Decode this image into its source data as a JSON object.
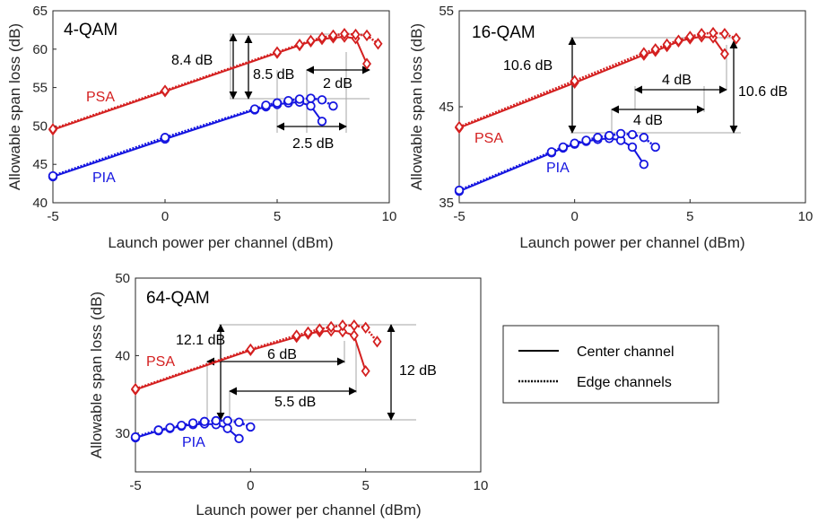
{
  "colors": {
    "psa": "#d42020",
    "pia": "#1515e0",
    "axis": "#262626",
    "guide": "#a6a6a6",
    "arrow": "#000000"
  },
  "legend": {
    "center_label": "Center channel",
    "edge_label": "Edge channels"
  },
  "chart_data": [
    {
      "type": "line",
      "panel": "4-QAM",
      "title": "4-QAM",
      "xlabel": "Launch power per channel (dBm)",
      "ylabel": "Allowable span loss (dB)",
      "xlim": [
        -5,
        10
      ],
      "ylim": [
        40,
        65
      ],
      "xticks": [
        -5,
        0,
        5,
        10
      ],
      "yticks": [
        40,
        45,
        50,
        55,
        60,
        65
      ],
      "series_labels": {
        "psa": "PSA",
        "pia": "PIA"
      },
      "series": [
        {
          "group": "psa",
          "style": "center",
          "x": [
            -5,
            0,
            5,
            6,
            6.5,
            7,
            7.5,
            8,
            8.5,
            9
          ],
          "y": [
            49.5,
            54.5,
            59.5,
            60.5,
            61,
            61.3,
            61.5,
            61.6,
            61.4,
            58.1
          ]
        },
        {
          "group": "psa",
          "style": "edge",
          "x": [
            -5,
            0,
            5,
            6,
            6.5,
            7,
            7.5,
            8,
            8.5,
            9,
            9.5
          ],
          "y": [
            49.6,
            54.6,
            59.6,
            60.6,
            61.1,
            61.5,
            61.8,
            62,
            61.9,
            61.8,
            60.7
          ]
        },
        {
          "group": "pia",
          "style": "center",
          "x": [
            -5,
            0,
            4,
            4.5,
            5,
            5.5,
            6,
            6.5,
            7
          ],
          "y": [
            43.4,
            48.3,
            52.1,
            52.5,
            52.8,
            53,
            53.1,
            52.6,
            50.6
          ]
        },
        {
          "group": "pia",
          "style": "edge",
          "x": [
            -5,
            0,
            4,
            4.5,
            5,
            5.5,
            6,
            6.5,
            7,
            7.5
          ],
          "y": [
            43.5,
            48.5,
            52.2,
            52.7,
            53,
            53.3,
            53.5,
            53.6,
            53.4,
            52.6
          ]
        }
      ],
      "annotations": [
        "8.4 dB",
        "8.5 dB",
        "2 dB",
        "2.5 dB"
      ]
    },
    {
      "type": "line",
      "panel": "16-QAM",
      "title": "16-QAM",
      "xlabel": "Launch power per channel (dBm)",
      "ylabel": "Allowable span loss (dB)",
      "xlim": [
        -5,
        10
      ],
      "ylim": [
        35,
        55
      ],
      "xticks": [
        -5,
        0,
        5,
        10
      ],
      "yticks": [
        35,
        45,
        55
      ],
      "series_labels": {
        "psa": "PSA",
        "pia": "PIA"
      },
      "series": [
        {
          "group": "psa",
          "style": "center",
          "x": [
            -5,
            0,
            3,
            3.5,
            4,
            4.5,
            5,
            5.5,
            6,
            6.5
          ],
          "y": [
            42.8,
            47.5,
            50.4,
            50.8,
            51.3,
            51.8,
            52.1,
            52.3,
            52.2,
            50.5
          ]
        },
        {
          "group": "psa",
          "style": "edge",
          "x": [
            -5,
            0,
            3,
            3.5,
            4,
            4.5,
            5,
            5.5,
            6,
            6.5,
            7
          ],
          "y": [
            42.9,
            47.7,
            50.6,
            51,
            51.5,
            51.9,
            52.3,
            52.6,
            52.7,
            52.6,
            52.1
          ]
        },
        {
          "group": "pia",
          "style": "center",
          "x": [
            -5,
            -1,
            -0.5,
            0,
            0.5,
            1,
            1.5,
            2,
            2.5,
            3
          ],
          "y": [
            36.2,
            40.2,
            40.7,
            41.1,
            41.4,
            41.6,
            41.7,
            41.5,
            40.8,
            39
          ]
        },
        {
          "group": "pia",
          "style": "edge",
          "x": [
            -5,
            -1,
            -0.5,
            0,
            0.5,
            1,
            1.5,
            2,
            2.5,
            3,
            3.5
          ],
          "y": [
            36.3,
            40.3,
            40.8,
            41.2,
            41.5,
            41.8,
            42,
            42.2,
            42.1,
            41.8,
            40.8
          ]
        }
      ],
      "annotations": [
        "10.6 dB",
        "4 dB",
        "4 dB",
        "10.6 dB"
      ]
    },
    {
      "type": "line",
      "panel": "64-QAM",
      "title": "64-QAM",
      "xlabel": "Launch power per channel (dBm)",
      "ylabel": "Allowable span loss (dB)",
      "xlim": [
        -5,
        10
      ],
      "ylim": [
        25,
        50
      ],
      "xticks": [
        -5,
        0,
        5,
        10
      ],
      "yticks": [
        30,
        40,
        50
      ],
      "series_labels": {
        "psa": "PSA",
        "pia": "PIA"
      },
      "series": [
        {
          "group": "psa",
          "style": "center",
          "x": [
            -5,
            0,
            2,
            2.5,
            3,
            3.5,
            4,
            4.5,
            5
          ],
          "y": [
            35.6,
            40.7,
            42.4,
            42.8,
            43.1,
            43.2,
            43.1,
            42.6,
            38
          ]
        },
        {
          "group": "psa",
          "style": "edge",
          "x": [
            -5,
            0,
            2,
            2.5,
            3,
            3.5,
            4,
            4.5,
            5,
            5.5
          ],
          "y": [
            35.7,
            40.8,
            42.6,
            43,
            43.4,
            43.7,
            43.9,
            43.9,
            43.6,
            41.8
          ]
        },
        {
          "group": "pia",
          "style": "center",
          "x": [
            -5,
            -4,
            -3.5,
            -3,
            -2.5,
            -2,
            -1.5,
            -1,
            -0.5
          ],
          "y": [
            29.4,
            30.3,
            30.6,
            30.9,
            31.1,
            31.2,
            31.1,
            30.6,
            29.3
          ]
        },
        {
          "group": "pia",
          "style": "edge",
          "x": [
            -5,
            -4,
            -3.5,
            -3,
            -2.5,
            -2,
            -1.5,
            -1,
            -0.5,
            0
          ],
          "y": [
            29.5,
            30.4,
            30.7,
            31,
            31.3,
            31.5,
            31.6,
            31.6,
            31.4,
            30.8
          ]
        }
      ],
      "annotations": [
        "12.1 dB",
        "6 dB",
        "5.5 dB",
        "12 dB"
      ]
    }
  ]
}
